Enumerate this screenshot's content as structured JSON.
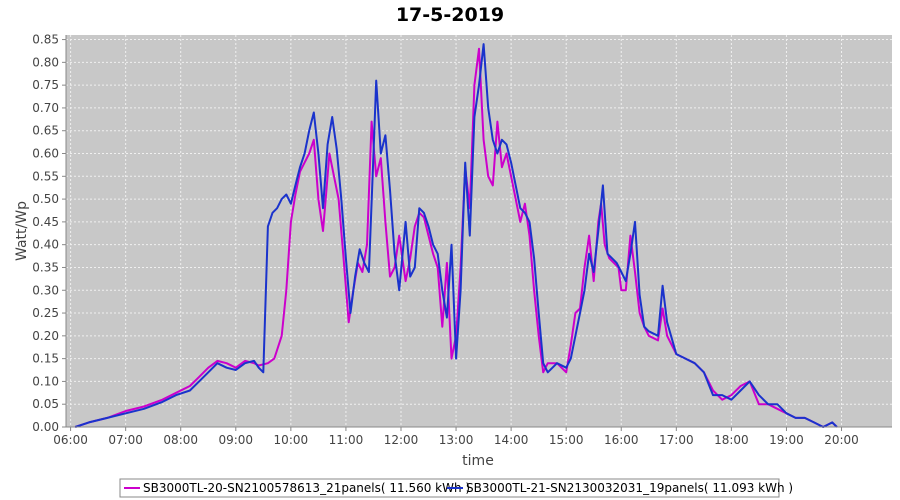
{
  "chart_data": {
    "type": "line",
    "title": "17-5-2019",
    "xlabel": "time",
    "ylabel": "Watt/Wp",
    "xlim": [
      "05:55",
      "20:55"
    ],
    "ylim": [
      0,
      0.86
    ],
    "x_ticks": [
      "06:00",
      "07:00",
      "08:00",
      "09:00",
      "10:00",
      "11:00",
      "12:00",
      "13:00",
      "14:00",
      "15:00",
      "16:00",
      "17:00",
      "18:00",
      "19:00",
      "20:00"
    ],
    "y_ticks": [
      "0.00",
      "0.05",
      "0.10",
      "0.15",
      "0.20",
      "0.25",
      "0.30",
      "0.35",
      "0.40",
      "0.45",
      "0.50",
      "0.55",
      "0.60",
      "0.65",
      "0.70",
      "0.75",
      "0.80",
      "0.85"
    ],
    "grid": true,
    "legend_position": "bottom",
    "background": "#c8c8c8",
    "series": [
      {
        "name": "SB3000TL-20-SN2100578613_21panels( 11.560 kWh )",
        "color": "#cc00cc",
        "points": [
          [
            "06:05",
            0.0
          ],
          [
            "06:20",
            0.01
          ],
          [
            "06:40",
            0.02
          ],
          [
            "07:00",
            0.035
          ],
          [
            "07:20",
            0.045
          ],
          [
            "07:40",
            0.06
          ],
          [
            "07:55",
            0.075
          ],
          [
            "08:10",
            0.09
          ],
          [
            "08:20",
            0.11
          ],
          [
            "08:30",
            0.13
          ],
          [
            "08:40",
            0.145
          ],
          [
            "08:50",
            0.14
          ],
          [
            "09:00",
            0.13
          ],
          [
            "09:10",
            0.145
          ],
          [
            "09:20",
            0.14
          ],
          [
            "09:25",
            0.135
          ],
          [
            "09:35",
            0.14
          ],
          [
            "09:42",
            0.15
          ],
          [
            "09:50",
            0.2
          ],
          [
            "09:55",
            0.3
          ],
          [
            "10:00",
            0.45
          ],
          [
            "10:05",
            0.51
          ],
          [
            "10:10",
            0.56
          ],
          [
            "10:15",
            0.58
          ],
          [
            "10:20",
            0.6
          ],
          [
            "10:25",
            0.63
          ],
          [
            "10:30",
            0.5
          ],
          [
            "10:35",
            0.43
          ],
          [
            "10:38",
            0.5
          ],
          [
            "10:42",
            0.6
          ],
          [
            "10:47",
            0.55
          ],
          [
            "10:52",
            0.5
          ],
          [
            "10:57",
            0.38
          ],
          [
            "11:03",
            0.23
          ],
          [
            "11:08",
            0.3
          ],
          [
            "11:13",
            0.36
          ],
          [
            "11:18",
            0.34
          ],
          [
            "11:23",
            0.4
          ],
          [
            "11:28",
            0.67
          ],
          [
            "11:33",
            0.55
          ],
          [
            "11:38",
            0.59
          ],
          [
            "11:43",
            0.45
          ],
          [
            "11:48",
            0.33
          ],
          [
            "11:53",
            0.35
          ],
          [
            "11:58",
            0.42
          ],
          [
            "12:05",
            0.32
          ],
          [
            "12:10",
            0.37
          ],
          [
            "12:15",
            0.44
          ],
          [
            "12:20",
            0.47
          ],
          [
            "12:25",
            0.46
          ],
          [
            "12:30",
            0.42
          ],
          [
            "12:35",
            0.38
          ],
          [
            "12:40",
            0.35
          ],
          [
            "12:45",
            0.22
          ],
          [
            "12:50",
            0.36
          ],
          [
            "12:55",
            0.15
          ],
          [
            "13:00",
            0.2
          ],
          [
            "13:05",
            0.35
          ],
          [
            "13:10",
            0.57
          ],
          [
            "13:15",
            0.48
          ],
          [
            "13:20",
            0.75
          ],
          [
            "13:25",
            0.83
          ],
          [
            "13:30",
            0.63
          ],
          [
            "13:35",
            0.55
          ],
          [
            "13:40",
            0.53
          ],
          [
            "13:45",
            0.67
          ],
          [
            "13:50",
            0.57
          ],
          [
            "13:55",
            0.6
          ],
          [
            "14:00",
            0.55
          ],
          [
            "14:05",
            0.5
          ],
          [
            "14:10",
            0.45
          ],
          [
            "14:15",
            0.49
          ],
          [
            "14:20",
            0.42
          ],
          [
            "14:25",
            0.3
          ],
          [
            "14:30",
            0.2
          ],
          [
            "14:35",
            0.12
          ],
          [
            "14:40",
            0.14
          ],
          [
            "14:50",
            0.14
          ],
          [
            "15:00",
            0.12
          ],
          [
            "15:05",
            0.18
          ],
          [
            "15:10",
            0.25
          ],
          [
            "15:15",
            0.26
          ],
          [
            "15:20",
            0.35
          ],
          [
            "15:25",
            0.42
          ],
          [
            "15:30",
            0.32
          ],
          [
            "15:35",
            0.45
          ],
          [
            "15:38",
            0.49
          ],
          [
            "15:42",
            0.4
          ],
          [
            "15:47",
            0.37
          ],
          [
            "15:52",
            0.36
          ],
          [
            "15:57",
            0.35
          ],
          [
            "16:00",
            0.3
          ],
          [
            "16:05",
            0.3
          ],
          [
            "16:10",
            0.42
          ],
          [
            "16:15",
            0.34
          ],
          [
            "16:20",
            0.25
          ],
          [
            "16:25",
            0.22
          ],
          [
            "16:30",
            0.2
          ],
          [
            "16:40",
            0.19
          ],
          [
            "16:45",
            0.26
          ],
          [
            "16:50",
            0.2
          ],
          [
            "17:00",
            0.16
          ],
          [
            "17:10",
            0.15
          ],
          [
            "17:20",
            0.14
          ],
          [
            "17:30",
            0.12
          ],
          [
            "17:40",
            0.08
          ],
          [
            "17:50",
            0.06
          ],
          [
            "18:00",
            0.07
          ],
          [
            "18:10",
            0.09
          ],
          [
            "18:20",
            0.1
          ],
          [
            "18:30",
            0.05
          ],
          [
            "18:40",
            0.05
          ],
          [
            "18:50",
            0.04
          ],
          [
            "19:00",
            0.03
          ],
          [
            "19:10",
            0.02
          ],
          [
            "19:20",
            0.02
          ],
          [
            "19:30",
            0.01
          ],
          [
            "19:40",
            0.0
          ],
          [
            "19:50",
            0.01
          ],
          [
            "19:55",
            0.0
          ]
        ]
      },
      {
        "name": "SB3000TL-21-SN2130032031_19panels( 11.093 kWh )",
        "color": "#1a33cc",
        "points": [
          [
            "06:05",
            0.0
          ],
          [
            "06:20",
            0.01
          ],
          [
            "06:40",
            0.02
          ],
          [
            "07:00",
            0.03
          ],
          [
            "07:20",
            0.04
          ],
          [
            "07:40",
            0.055
          ],
          [
            "07:55",
            0.07
          ],
          [
            "08:10",
            0.08
          ],
          [
            "08:20",
            0.1
          ],
          [
            "08:30",
            0.12
          ],
          [
            "08:40",
            0.14
          ],
          [
            "08:50",
            0.13
          ],
          [
            "09:00",
            0.125
          ],
          [
            "09:10",
            0.14
          ],
          [
            "09:20",
            0.145
          ],
          [
            "09:25",
            0.13
          ],
          [
            "09:30",
            0.12
          ],
          [
            "09:35",
            0.44
          ],
          [
            "09:40",
            0.47
          ],
          [
            "09:45",
            0.48
          ],
          [
            "09:50",
            0.5
          ],
          [
            "09:55",
            0.51
          ],
          [
            "10:00",
            0.49
          ],
          [
            "10:05",
            0.53
          ],
          [
            "10:10",
            0.57
          ],
          [
            "10:15",
            0.6
          ],
          [
            "10:20",
            0.65
          ],
          [
            "10:25",
            0.69
          ],
          [
            "10:30",
            0.6
          ],
          [
            "10:35",
            0.48
          ],
          [
            "10:40",
            0.62
          ],
          [
            "10:45",
            0.68
          ],
          [
            "10:50",
            0.61
          ],
          [
            "10:55",
            0.5
          ],
          [
            "11:00",
            0.37
          ],
          [
            "11:05",
            0.25
          ],
          [
            "11:10",
            0.33
          ],
          [
            "11:15",
            0.39
          ],
          [
            "11:20",
            0.36
          ],
          [
            "11:25",
            0.34
          ],
          [
            "11:30",
            0.6
          ],
          [
            "11:33",
            0.76
          ],
          [
            "11:38",
            0.6
          ],
          [
            "11:43",
            0.64
          ],
          [
            "11:48",
            0.52
          ],
          [
            "11:53",
            0.38
          ],
          [
            "11:58",
            0.3
          ],
          [
            "12:05",
            0.45
          ],
          [
            "12:10",
            0.33
          ],
          [
            "12:15",
            0.35
          ],
          [
            "12:20",
            0.48
          ],
          [
            "12:25",
            0.47
          ],
          [
            "12:30",
            0.44
          ],
          [
            "12:35",
            0.4
          ],
          [
            "12:40",
            0.38
          ],
          [
            "12:45",
            0.3
          ],
          [
            "12:50",
            0.24
          ],
          [
            "12:55",
            0.4
          ],
          [
            "13:00",
            0.15
          ],
          [
            "13:05",
            0.3
          ],
          [
            "13:10",
            0.58
          ],
          [
            "13:15",
            0.42
          ],
          [
            "13:20",
            0.68
          ],
          [
            "13:25",
            0.75
          ],
          [
            "13:30",
            0.84
          ],
          [
            "13:35",
            0.7
          ],
          [
            "13:40",
            0.63
          ],
          [
            "13:45",
            0.6
          ],
          [
            "13:50",
            0.63
          ],
          [
            "13:55",
            0.62
          ],
          [
            "14:00",
            0.58
          ],
          [
            "14:05",
            0.53
          ],
          [
            "14:10",
            0.48
          ],
          [
            "14:15",
            0.47
          ],
          [
            "14:20",
            0.45
          ],
          [
            "14:25",
            0.37
          ],
          [
            "14:30",
            0.25
          ],
          [
            "14:35",
            0.14
          ],
          [
            "14:40",
            0.12
          ],
          [
            "14:50",
            0.14
          ],
          [
            "15:00",
            0.13
          ],
          [
            "15:05",
            0.15
          ],
          [
            "15:10",
            0.2
          ],
          [
            "15:15",
            0.25
          ],
          [
            "15:20",
            0.3
          ],
          [
            "15:25",
            0.38
          ],
          [
            "15:30",
            0.34
          ],
          [
            "15:35",
            0.43
          ],
          [
            "15:40",
            0.53
          ],
          [
            "15:45",
            0.38
          ],
          [
            "15:50",
            0.37
          ],
          [
            "15:55",
            0.36
          ],
          [
            "16:00",
            0.34
          ],
          [
            "16:05",
            0.32
          ],
          [
            "16:10",
            0.38
          ],
          [
            "16:15",
            0.45
          ],
          [
            "16:20",
            0.29
          ],
          [
            "16:25",
            0.22
          ],
          [
            "16:30",
            0.21
          ],
          [
            "16:40",
            0.2
          ],
          [
            "16:45",
            0.31
          ],
          [
            "16:50",
            0.23
          ],
          [
            "17:00",
            0.16
          ],
          [
            "17:10",
            0.15
          ],
          [
            "17:20",
            0.14
          ],
          [
            "17:30",
            0.12
          ],
          [
            "17:40",
            0.07
          ],
          [
            "17:50",
            0.07
          ],
          [
            "18:00",
            0.06
          ],
          [
            "18:10",
            0.08
          ],
          [
            "18:20",
            0.1
          ],
          [
            "18:30",
            0.07
          ],
          [
            "18:40",
            0.05
          ],
          [
            "18:50",
            0.05
          ],
          [
            "19:00",
            0.03
          ],
          [
            "19:10",
            0.02
          ],
          [
            "19:20",
            0.02
          ],
          [
            "19:30",
            0.01
          ],
          [
            "19:40",
            0.0
          ],
          [
            "19:50",
            0.01
          ],
          [
            "19:55",
            0.0
          ]
        ]
      }
    ]
  }
}
